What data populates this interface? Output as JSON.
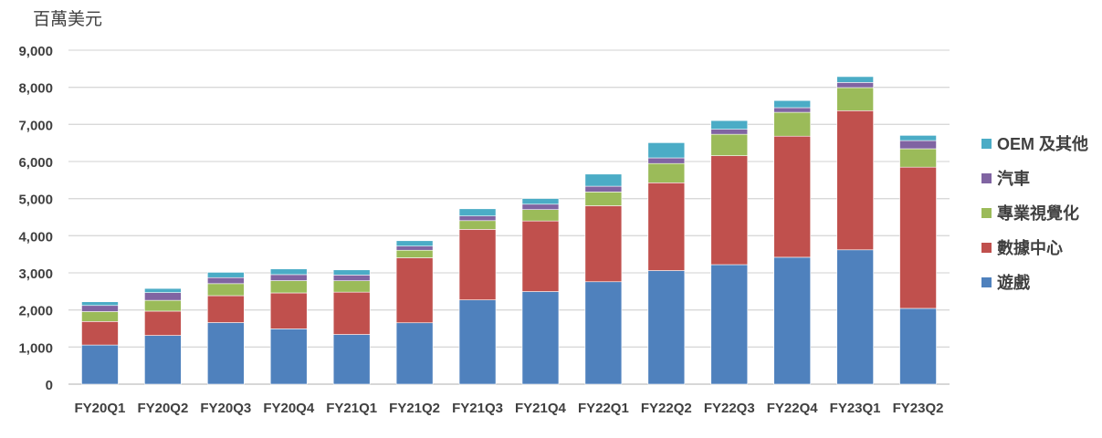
{
  "chart_data": {
    "type": "bar",
    "stacked": true,
    "title": "",
    "ylabel": "百萬美元",
    "xlabel": "",
    "ylim": [
      0,
      9000
    ],
    "yticks": [
      0,
      1000,
      2000,
      3000,
      4000,
      5000,
      6000,
      7000,
      8000,
      9000
    ],
    "ytick_labels": [
      "0",
      "1,000",
      "2,000",
      "3,000",
      "4,000",
      "5,000",
      "6,000",
      "7,000",
      "8,000",
      "9,000"
    ],
    "grid": true,
    "legend_position": "right",
    "categories": [
      "FY20Q1",
      "FY20Q2",
      "FY20Q3",
      "FY20Q4",
      "FY21Q1",
      "FY21Q2",
      "FY21Q3",
      "FY21Q4",
      "FY22Q1",
      "FY22Q2",
      "FY22Q3",
      "FY22Q4",
      "FY23Q1",
      "FY23Q2"
    ],
    "series": [
      {
        "name": "遊戲",
        "color": "#4f81bd",
        "values": [
          1055,
          1313,
          1659,
          1491,
          1339,
          1654,
          2271,
          2495,
          2760,
          3061,
          3221,
          3420,
          3620,
          2042
        ]
      },
      {
        "name": "數據中心",
        "color": "#c0504d",
        "values": [
          634,
          655,
          726,
          968,
          1141,
          1752,
          1900,
          1903,
          2048,
          2366,
          2936,
          3263,
          3750,
          3806
        ]
      },
      {
        "name": "專業視覺化",
        "color": "#9bbb59",
        "values": [
          266,
          291,
          324,
          331,
          307,
          203,
          236,
          307,
          372,
          519,
          577,
          643,
          622,
          496
        ]
      },
      {
        "name": "汽車",
        "color": "#8064a2",
        "values": [
          166,
          209,
          162,
          163,
          155,
          111,
          125,
          145,
          154,
          152,
          135,
          125,
          138,
          220
        ]
      },
      {
        "name": "OEM 及其他",
        "color": "#4bacc6",
        "values": [
          99,
          111,
          143,
          152,
          138,
          146,
          194,
          153,
          327,
          409,
          234,
          192,
          158,
          140
        ]
      }
    ]
  }
}
